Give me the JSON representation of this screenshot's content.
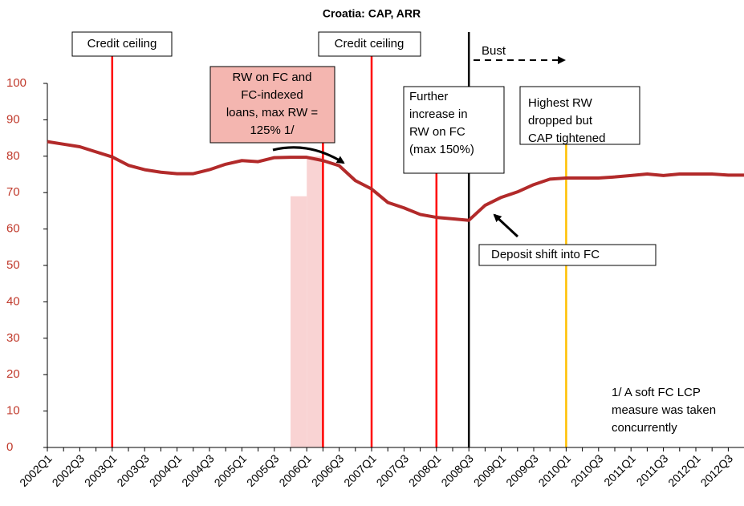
{
  "chart_data": {
    "type": "line",
    "title": "Croatia: CAP, ARR",
    "categories": [
      "2002Q1",
      null,
      "2002Q3",
      null,
      "2003Q1",
      null,
      "2003Q3",
      null,
      "2004Q1",
      null,
      "2004Q3",
      null,
      "2005Q1",
      null,
      "2005Q3",
      null,
      "2006Q1",
      null,
      "2006Q3",
      null,
      "2007Q1",
      null,
      "2007Q3",
      null,
      "2008Q1",
      null,
      "2008Q3",
      null,
      "2009Q1",
      null,
      "2009Q3",
      null,
      "2010Q1",
      null,
      "2010Q3",
      null,
      "2011Q1",
      null,
      "2011Q3",
      null,
      "2012Q1",
      null,
      "2012Q3",
      null
    ],
    "values": [
      84,
      83.3,
      82.6,
      81.2,
      79.8,
      77.5,
      76.3,
      75.6,
      75.2,
      75.2,
      76.3,
      77.8,
      78.8,
      78.5,
      79.6,
      79.7,
      79.7,
      78.8,
      77.4,
      73.3,
      71,
      67.3,
      65.8,
      64,
      63.2,
      62.8,
      62.4,
      66.5,
      68.7,
      70.2,
      72.2,
      73.7,
      74,
      74,
      74,
      74.3,
      74.7,
      75.1,
      74.7,
      75.1,
      75.1,
      75.1,
      74.8,
      74.8
    ],
    "color": "#b22a2a",
    "bar_values": [
      null,
      null,
      null,
      null,
      null,
      null,
      null,
      null,
      null,
      null,
      null,
      null,
      null,
      null,
      null,
      69,
      80,
      null,
      null,
      null,
      null,
      null,
      null,
      null,
      null,
      null,
      null,
      null,
      null,
      null,
      null,
      null,
      null,
      null,
      null,
      null,
      null,
      null,
      null,
      null,
      null,
      null,
      null,
      null
    ],
    "bar_color": "#f9d3d3",
    "ylim": [
      0,
      100
    ],
    "yticks": [
      0,
      10,
      20,
      30,
      40,
      50,
      60,
      70,
      80,
      90,
      100
    ],
    "event_lines": [
      {
        "at": 4,
        "color": "#ff0000"
      },
      {
        "at": 17,
        "color": "#ff0000"
      },
      {
        "at": 20,
        "color": "#ff0000"
      },
      {
        "at": 24,
        "color": "#ff0000"
      },
      {
        "at": 26,
        "color": "#000000"
      },
      {
        "at": 32,
        "color": "#ffc000"
      }
    ],
    "annotations": [
      {
        "lines": [
          "Credit ceiling"
        ]
      },
      {
        "lines": [
          "Credit ceiling"
        ]
      },
      {
        "lines": [
          "RW on FC and",
          "FC-indexed",
          "loans, max RW =",
          "125% 1/"
        ]
      },
      {
        "lines": [
          "Further",
          "increase in",
          "RW on FC",
          "(max 150%)"
        ]
      },
      {
        "lines": [
          "Highest RW",
          "dropped but",
          "CAP tightened"
        ]
      },
      {
        "lines": [
          "Deposit shift into FC"
        ]
      },
      {
        "lines": [
          "Bust"
        ]
      },
      {
        "lines": [
          "1/ A soft FC LCP",
          "measure was taken",
          "concurrently"
        ]
      }
    ]
  }
}
